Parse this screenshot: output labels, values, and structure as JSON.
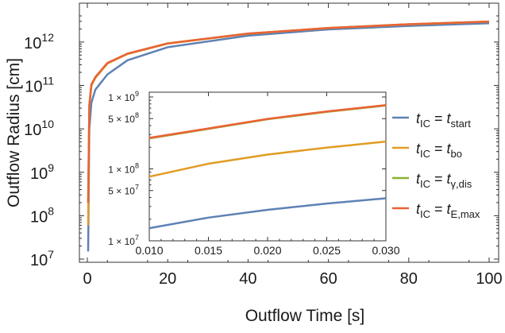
{
  "chart_data": [
    {
      "type": "line",
      "xlabel": "Outflow Time [s]",
      "ylabel": "Outflow Radius [cm]",
      "xlim": [
        0,
        100
      ],
      "ylim": [
        10000000.0,
        4000000000000.0
      ],
      "yscale": "log",
      "x_ticks": [
        0,
        20,
        40,
        60,
        80,
        100
      ],
      "x_tick_labels": [
        "0",
        "20",
        "40",
        "60",
        "80",
        "100"
      ],
      "y_ticks": [
        10000000.0,
        100000000.0,
        1000000000.0,
        10000000000.0,
        100000000000.0,
        1000000000000.0
      ],
      "y_tick_base": "10",
      "y_tick_exponents": [
        "7",
        "8",
        "9",
        "10",
        "11",
        "12"
      ],
      "grid": false,
      "series": [
        {
          "name": "t_IC = t_start",
          "color": "#5E81B5",
          "x": [
            0.2,
            0.5,
            1,
            2,
            5,
            10,
            20,
            40,
            60,
            80,
            100
          ],
          "y": [
            15000000.0,
            10000000000.0,
            40000000000.0,
            80000000000.0,
            180000000000.0,
            380000000000.0,
            760000000000.0,
            1400000000000.0,
            1950000000000.0,
            2350000000000.0,
            2700000000000.0
          ]
        },
        {
          "name": "t_IC = t_bo",
          "color": "#E19C24",
          "x": [
            0.2,
            0.5,
            1,
            2,
            5,
            10,
            20,
            40,
            60,
            80,
            100
          ],
          "y": [
            60000000.0,
            33000000000.0,
            100000000000.0,
            150000000000.0,
            320000000000.0,
            530000000000.0,
            920000000000.0,
            1550000000000.0,
            2100000000000.0,
            2550000000000.0,
            2950000000000.0
          ]
        },
        {
          "name": "t_IC = t_γ,dis",
          "color": "#8FB032",
          "x": [
            0.2,
            0.5,
            1,
            2,
            5,
            10,
            20,
            40,
            60,
            80,
            100
          ],
          "y": [
            200000000.0,
            35000000000.0,
            105000000000.0,
            155000000000.0,
            330000000000.0,
            540000000000.0,
            930000000000.0,
            1560000000000.0,
            2100000000000.0,
            2570000000000.0,
            2970000000000.0
          ]
        },
        {
          "name": "t_IC = t_E,max",
          "color": "#EB6235",
          "x": [
            0.2,
            0.5,
            1,
            2,
            5,
            10,
            20,
            40,
            60,
            80,
            100
          ],
          "y": [
            200000000.0,
            35000000000.0,
            105000000000.0,
            155000000000.0,
            330000000000.0,
            540000000000.0,
            930000000000.0,
            1560000000000.0,
            2100000000000.0,
            2570000000000.0,
            2970000000000.0
          ]
        }
      ],
      "legend": {
        "placement": "right",
        "entries": [
          {
            "var": "t",
            "sub": "IC",
            "rvar": "t",
            "rsub": "start",
            "color": "#5E81B5"
          },
          {
            "var": "t",
            "sub": "IC",
            "rvar": "t",
            "rsub": "bo",
            "color": "#E19C24"
          },
          {
            "var": "t",
            "sub": "IC",
            "rvar": "t",
            "rsub": "γ,dis",
            "color": "#8FB032"
          },
          {
            "var": "t",
            "sub": "IC",
            "rvar": "t",
            "rsub": "E,max",
            "color": "#EB6235"
          }
        ],
        "equals": "="
      }
    },
    {
      "type": "line",
      "role": "inset",
      "xlim": [
        0.01,
        0.03
      ],
      "ylim": [
        10000000.0,
        1000000000.0
      ],
      "yscale": "log",
      "x_ticks": [
        0.01,
        0.015,
        0.02,
        0.025,
        0.03
      ],
      "x_tick_labels": [
        "0.010",
        "0.015",
        "0.020",
        "0.025",
        "0.030"
      ],
      "y_ticks": [
        10000000.0,
        50000000.0,
        100000000.0,
        500000000.0,
        1000000000.0
      ],
      "y_tick_labels": [
        {
          "mant": "1 × 10",
          "exp": "7"
        },
        {
          "mant": "5 × 10",
          "exp": "7"
        },
        {
          "mant": "1 × 10",
          "exp": "8"
        },
        {
          "mant": "5 × 10",
          "exp": "8"
        },
        {
          "mant": "1 × 10",
          "exp": "9"
        }
      ],
      "series": [
        {
          "name": "t_IC = t_start",
          "color": "#5E81B5",
          "x": [
            0.01,
            0.015,
            0.02,
            0.025,
            0.03
          ],
          "y": [
            15000000.0,
            21000000.0,
            27000000.0,
            33000000.0,
            39000000.0
          ]
        },
        {
          "name": "t_IC = t_bo",
          "color": "#E19C24",
          "x": [
            0.01,
            0.015,
            0.02,
            0.025,
            0.03
          ],
          "y": [
            78000000.0,
            118000000.0,
            158000000.0,
            198000000.0,
            240000000.0
          ]
        },
        {
          "name": "t_IC = t_γ,dis",
          "color": "#8FB032",
          "x": [
            0.01,
            0.015,
            0.02,
            0.025,
            0.03
          ],
          "y": [
            265000000.0,
            360000000.0,
            490000000.0,
            620000000.0,
            760000000.0
          ]
        },
        {
          "name": "t_IC = t_E,max",
          "color": "#EB6235",
          "x": [
            0.01,
            0.015,
            0.02,
            0.025,
            0.03
          ],
          "y": [
            270000000.0,
            365000000.0,
            495000000.0,
            630000000.0,
            770000000.0
          ]
        }
      ]
    }
  ]
}
